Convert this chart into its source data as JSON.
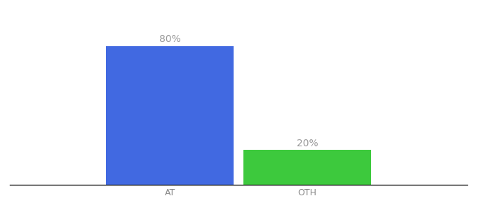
{
  "categories": [
    "AT",
    "OTH"
  ],
  "values": [
    80,
    20
  ],
  "bar_colors": [
    "#4169e1",
    "#3dc93d"
  ],
  "bar_labels": [
    "80%",
    "20%"
  ],
  "background_color": "#ffffff",
  "text_color": "#999999",
  "label_fontsize": 10,
  "tick_fontsize": 9,
  "ylim": [
    0,
    92
  ],
  "bar_width": 0.28,
  "xlim": [
    0.0,
    1.0
  ]
}
